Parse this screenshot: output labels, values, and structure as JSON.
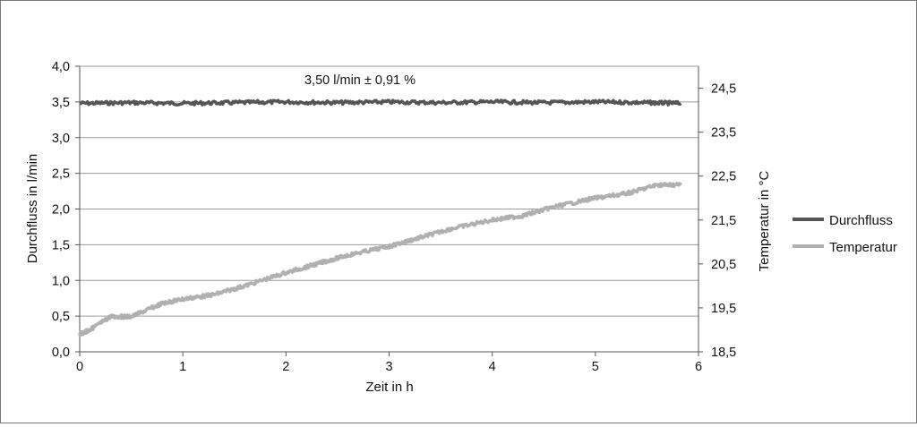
{
  "chart_data": {
    "type": "line",
    "annotation": "3,50 l/min ± 0,91 %",
    "xlabel": "Zeit in h",
    "ylabel_left": "Durchfluss in l/min",
    "ylabel_right": "Temperatur in °C",
    "xlim": [
      0,
      6
    ],
    "ylim_left": [
      0,
      4
    ],
    "ylim_right": [
      18.5,
      25.0
    ],
    "x_ticks": [
      "0",
      "1",
      "2",
      "3",
      "4",
      "5",
      "6"
    ],
    "y_left_ticks": [
      "0,0",
      "0,5",
      "1,0",
      "1,5",
      "2,0",
      "2,5",
      "3,0",
      "3,5",
      "4,0"
    ],
    "y_right_ticks": [
      "18,5",
      "19,5",
      "20,5",
      "21,5",
      "22,5",
      "23,5",
      "24,5"
    ],
    "grid": true,
    "legend_position": "right",
    "series": [
      {
        "name": "Durchfluss",
        "axis": "left",
        "color": "#555555",
        "x": [
          0,
          0.5,
          1,
          1.5,
          2,
          2.5,
          3,
          3.5,
          4,
          4.5,
          5,
          5.5,
          5.83
        ],
        "values": [
          3.48,
          3.49,
          3.48,
          3.49,
          3.5,
          3.49,
          3.5,
          3.49,
          3.5,
          3.49,
          3.5,
          3.49,
          3.48
        ]
      },
      {
        "name": "Temperatur",
        "axis": "right",
        "color": "#b0b0b0",
        "x": [
          0,
          0.1,
          0.3,
          0.5,
          0.8,
          1.0,
          1.3,
          1.6,
          2.0,
          2.3,
          2.6,
          3.0,
          3.3,
          3.6,
          4.0,
          4.3,
          4.6,
          5.0,
          5.3,
          5.6,
          5.83
        ],
        "values": [
          18.9,
          19.0,
          19.3,
          19.3,
          19.6,
          19.7,
          19.8,
          20.0,
          20.3,
          20.5,
          20.7,
          20.9,
          21.1,
          21.3,
          21.5,
          21.6,
          21.8,
          22.0,
          22.1,
          22.3,
          22.3
        ]
      }
    ]
  }
}
